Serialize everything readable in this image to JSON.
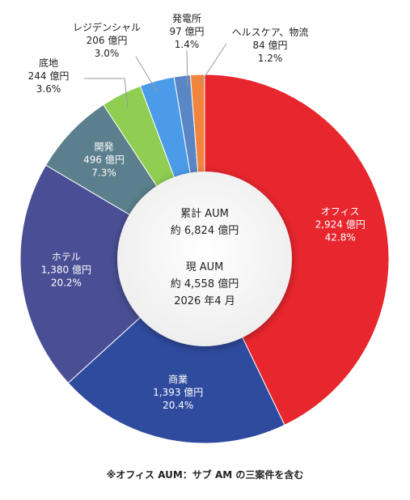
{
  "chart_data": {
    "type": "pie",
    "variant": "donut",
    "categories": [
      "オフィス",
      "商業",
      "ホテル",
      "開発",
      "底地",
      "レジデンシャル",
      "発電所",
      "ヘルスケア、物流"
    ],
    "values": [
      2924,
      1393,
      1380,
      496,
      244,
      206,
      97,
      84
    ],
    "value_labels": [
      "2,924 億円",
      "1,393 億円",
      "1,380 億円",
      "496 億円",
      "244 億円",
      "206 億円",
      "97 億円",
      "84 億円"
    ],
    "percent_labels": [
      "42.8%",
      "20.4%",
      "20.2%",
      "7.3%",
      "3.6%",
      "3.0%",
      "1.4%",
      "1.2%"
    ],
    "colors": [
      "#e8262e",
      "#2f4b9e",
      "#4a4f95",
      "#5b7f8c",
      "#8fce52",
      "#4b9be8",
      "#5a86c5",
      "#f2853e"
    ],
    "label_placement": [
      "inside",
      "inside",
      "inside",
      "inside",
      "outside",
      "outside",
      "outside",
      "outside"
    ],
    "center": {
      "line1": "累計 AUM",
      "line2": "約 6,824 億円",
      "line3": "現 AUM",
      "line4": "約 4,558 億円",
      "line5": "2026 年4 月"
    },
    "footnote": "※オフィス AUM：サブ AM の三案件を含む"
  }
}
